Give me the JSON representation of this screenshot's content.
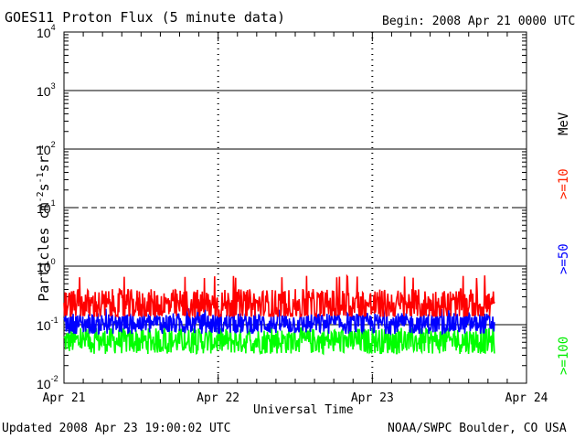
{
  "header": {
    "title": "GOES11 Proton Flux (5 minute data)",
    "begin": "Begin: 2008 Apr 21 0000 UTC"
  },
  "footer": {
    "updated": "Updated 2008 Apr 23 19:00:02 UTC",
    "source": "NOAA/SWPC Boulder, CO USA"
  },
  "axis": {
    "ylabel_main": "Particles cm",
    "ylabel_sup1": "-2",
    "ylabel_s": "s",
    "ylabel_sup2": "-1",
    "ylabel_sr": "sr",
    "ylabel_sup3": "-1",
    "xlabel": "Universal Time",
    "unit_label": "MeV"
  },
  "chart_data": {
    "type": "line",
    "title": "GOES11 Proton Flux (5 minute data)",
    "xlabel": "Universal Time",
    "ylabel": "Particles cm-2 s-1 sr-1",
    "yscale": "log",
    "ylim": [
      0.01,
      10000
    ],
    "xlim_days": [
      0,
      3
    ],
    "x_ticks": [
      "Apr 21",
      "Apr 22",
      "Apr 23",
      "Apr 24"
    ],
    "y_ticks": [
      "10^-2",
      "10^-1",
      "10^0",
      "10^1",
      "10^2",
      "10^3",
      "10^4"
    ],
    "y_tick_values": [
      0.01,
      0.1,
      1,
      10,
      100,
      1000,
      10000
    ],
    "data_end": "2008 Apr 23 19:00 UTC",
    "series": [
      {
        "name": ">=10",
        "color": "#ff0000",
        "typical": 0.2,
        "min": 0.14,
        "max": 0.7
      },
      {
        "name": ">=50",
        "color": "#0000ff",
        "typical": 0.1,
        "min": 0.07,
        "max": 0.2
      },
      {
        "name": ">=100",
        "color": "#00ff00",
        "typical": 0.05,
        "min": 0.025,
        "max": 0.09
      }
    ],
    "reference_lines": [
      {
        "value": 10,
        "style": "dashed"
      },
      {
        "value": 0.1,
        "style": "solid"
      },
      {
        "value": 1,
        "style": "solid"
      },
      {
        "value": 100,
        "style": "solid"
      },
      {
        "value": 1000,
        "style": "solid"
      }
    ],
    "grid": false,
    "legend": "right"
  }
}
